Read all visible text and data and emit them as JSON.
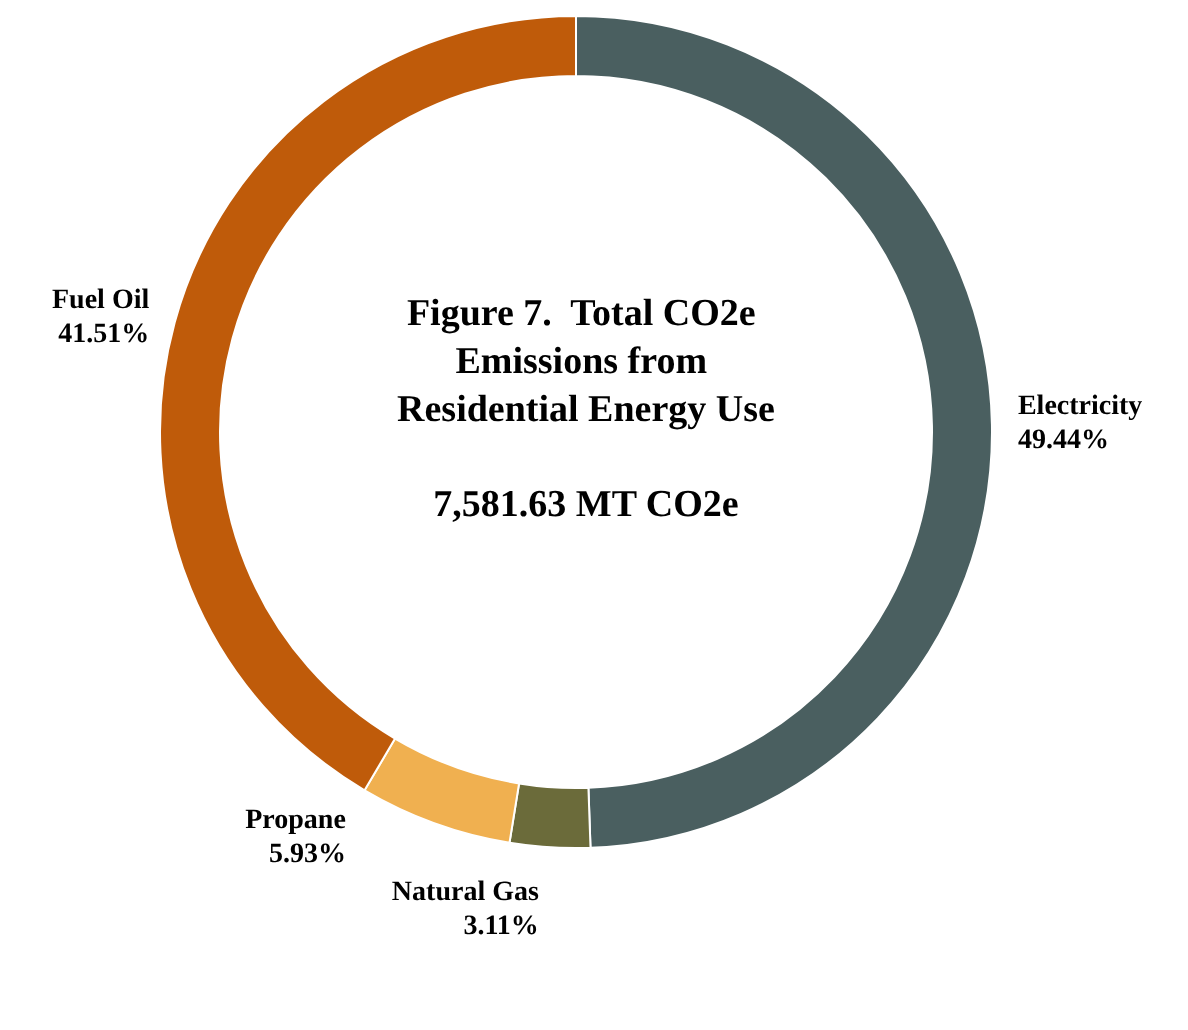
{
  "chart_data": {
    "type": "donut",
    "title": "Figure 7.  Total CO2e Emissions from Residential Energy Use",
    "subtitle": "7,581.63 MT CO2e",
    "categories": [
      "Electricity",
      "Natural Gas",
      "Propane",
      "Fuel Oil"
    ],
    "values": [
      49.44,
      3.11,
      5.93,
      41.51
    ],
    "colors": [
      "#4a5f60",
      "#6b6b3a",
      "#f0b050",
      "#bf5b0a"
    ],
    "value_labels": [
      "49.44%",
      "3.11%",
      "5.93%",
      "41.51%"
    ],
    "legend": false
  }
}
